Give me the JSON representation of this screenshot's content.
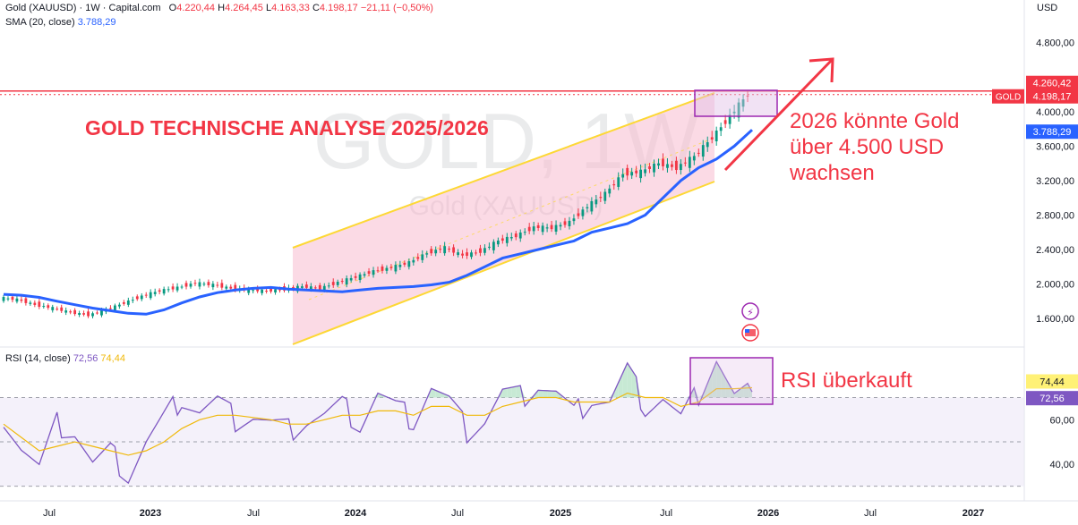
{
  "header": {
    "symbol": "Gold (XAUUSD) · 1W · Capital.com",
    "ohlc": {
      "o_label": "O",
      "o": "4.220,44",
      "h_label": "H",
      "h": "4.264,45",
      "l_label": "L",
      "l": "4.163,33",
      "c_label": "C",
      "c": "4.198,17",
      "change": "−21,11 (−0,50%)"
    },
    "sma_label": "SMA (20, close)",
    "sma_value": "3.788,29",
    "rsi_label": "RSI (14, close)",
    "rsi_value": "72,56",
    "rsi_ma_value": "74,44"
  },
  "colors": {
    "up": "#089981",
    "down": "#f23645",
    "sma": "#2962ff",
    "rsi": "#7e57c2",
    "rsi_ma": "#f0b90b",
    "channel": "#fdd835",
    "annotation": "#f23645",
    "box": "#9c27b0"
  },
  "chart_data": [
    {
      "type": "candlestick",
      "title": "",
      "currency": "USD",
      "x_ticks": [
        "Jul",
        "2023",
        "Jul",
        "2024",
        "Jul",
        "2025",
        "Jul",
        "2026",
        "Jul",
        "2027"
      ],
      "y_ticks": [
        "1.600,00",
        "2.000,00",
        "2.400,00",
        "2.800,00",
        "3.200,00",
        "3.600,00",
        "4.000,00",
        "4.800,00"
      ],
      "ylim": [
        1300,
        5150
      ],
      "series": [
        {
          "name": "SMA (20, close)",
          "values": [
            1880,
            1870,
            1845,
            1800,
            1760,
            1720,
            1690,
            1660,
            1650,
            1700,
            1780,
            1850,
            1900,
            1930,
            1950,
            1960,
            1940,
            1930,
            1920,
            1910,
            1930,
            1950,
            1960,
            1970,
            1990,
            2020,
            2100,
            2200,
            2300,
            2350,
            2400,
            2450,
            2500,
            2600,
            2650,
            2700,
            2800,
            3000,
            3200,
            3350,
            3450,
            3600,
            3788
          ]
        }
      ],
      "price_points": [
        1840,
        1820,
        1760,
        1720,
        1670,
        1640,
        1700,
        1780,
        1860,
        1920,
        1960,
        2010,
        1990,
        1950,
        1930,
        1920,
        1940,
        1970,
        1950,
        2020,
        2080,
        2150,
        2190,
        2250,
        2360,
        2420,
        2330,
        2380,
        2500,
        2560,
        2660,
        2650,
        2720,
        2900,
        3050,
        3280,
        3300,
        3400,
        3350,
        3480,
        3700,
        3950,
        4198
      ],
      "annotations": [
        "GOLD TECHNISCHE ANALYSE 2025/2026",
        "2026 könnte Gold",
        "über 4.500 USD",
        "wachsen"
      ],
      "watermark": {
        "big": "GOLD, 1W",
        "small": "Gold (XAUUSD)"
      },
      "price_labels": [
        {
          "text": "4.260,42",
          "value": 4260.42,
          "kind": "high"
        },
        {
          "text": "4.198,17",
          "value": 4198.17,
          "kind": "last",
          "tag": "GOLD"
        },
        {
          "text": "3.788,29",
          "value": 3788.29,
          "kind": "sma"
        }
      ]
    },
    {
      "type": "line",
      "title": "RSI (14, close)",
      "y_ticks": [
        "40,00",
        "60,00"
      ],
      "ylim": [
        25,
        92
      ],
      "guides": [
        30,
        50,
        70
      ],
      "series": [
        {
          "name": "RSI (14, close)",
          "values": [
            62,
            48,
            38,
            58,
            55,
            40,
            45,
            35,
            50,
            60,
            70,
            64,
            68,
            60,
            62,
            58,
            55,
            60,
            62,
            66,
            58,
            72,
            65,
            60,
            75,
            68,
            55,
            60,
            72,
            70,
            76,
            72,
            62,
            70,
            68,
            82,
            66,
            70,
            60,
            72,
            88,
            70,
            72.56
          ]
        },
        {
          "name": "MA",
          "values": [
            58,
            52,
            46,
            48,
            50,
            48,
            46,
            44,
            46,
            50,
            56,
            60,
            62,
            62,
            61,
            60,
            58,
            58,
            60,
            62,
            62,
            64,
            64,
            62,
            66,
            66,
            62,
            62,
            66,
            68,
            70,
            70,
            68,
            68,
            68,
            72,
            70,
            70,
            66,
            68,
            74,
            74,
            74.44
          ]
        }
      ],
      "annotations": [
        "RSI überkauft"
      ],
      "price_labels": [
        {
          "text": "74,44",
          "value": 74.44,
          "kind": "ma"
        },
        {
          "text": "72,56",
          "value": 72.56,
          "kind": "rsi"
        }
      ]
    }
  ]
}
